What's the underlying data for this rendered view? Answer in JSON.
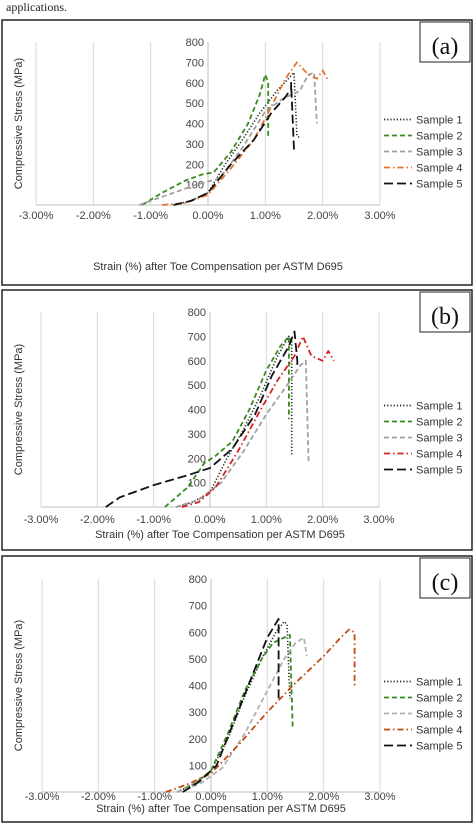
{
  "caption": "applications.",
  "chart_data": [
    {
      "type": "line",
      "panel_label": "(a)",
      "xlabel": "Strain (%) after Toe Compensation per ASTM D695",
      "ylabel": "Compressive Stress (MPa)",
      "xlim": [
        -3,
        3
      ],
      "ylim": [
        0,
        800
      ],
      "x_ticks": [
        "-3.00%",
        "-2.00%",
        "-1.00%",
        "0.00%",
        "1.00%",
        "2.00%",
        "3.00%"
      ],
      "y_ticks": [
        "0",
        "100",
        "200",
        "300",
        "400",
        "500",
        "600",
        "700",
        "800"
      ],
      "grid": "vertical",
      "legend_position": "right",
      "series": [
        {
          "name": "Sample 1",
          "color": "#222222",
          "dash": "dotted",
          "x": [
            -0.6,
            -0.3,
            0.0,
            0.3,
            0.6,
            0.9,
            1.2,
            1.4,
            1.5,
            1.55,
            1.6
          ],
          "y": [
            0,
            20,
            60,
            200,
            320,
            450,
            560,
            620,
            650,
            340,
            330
          ]
        },
        {
          "name": "Sample 2",
          "color": "#3a8a1e",
          "dash": "dash",
          "x": [
            -1.15,
            -0.8,
            -0.4,
            -0.1,
            0.1,
            0.4,
            0.7,
            0.9,
            1.0,
            1.05,
            1.05
          ],
          "y": [
            0,
            60,
            120,
            150,
            160,
            260,
            400,
            540,
            640,
            600,
            340
          ]
        },
        {
          "name": "Sample 3",
          "color": "#a0a0a0",
          "dash": "dash",
          "x": [
            -1.2,
            -0.7,
            -0.2,
            0.2,
            0.6,
            1.0,
            1.3,
            1.6,
            1.75,
            1.85,
            1.9
          ],
          "y": [
            0,
            50,
            100,
            130,
            280,
            460,
            520,
            560,
            640,
            650,
            400
          ]
        },
        {
          "name": "Sample 4",
          "color": "#e8702a",
          "dash": "dashdot",
          "x": [
            -0.8,
            -0.4,
            0.0,
            0.4,
            0.8,
            1.1,
            1.35,
            1.55,
            1.75,
            1.9,
            2.0,
            2.1
          ],
          "y": [
            0,
            10,
            50,
            180,
            320,
            480,
            620,
            700,
            640,
            620,
            660,
            610
          ]
        },
        {
          "name": "Sample 5",
          "color": "#111111",
          "dash": "longdash",
          "x": [
            -0.6,
            -0.3,
            0.0,
            0.4,
            0.8,
            1.1,
            1.35,
            1.45,
            1.45,
            1.5
          ],
          "y": [
            0,
            20,
            60,
            200,
            320,
            450,
            530,
            570,
            600,
            270
          ]
        }
      ]
    },
    {
      "type": "line",
      "panel_label": "(b)",
      "xlabel": "Strain (%) after Toe Compensation per ASTM D695",
      "ylabel": "Compressive Stress (MPa)",
      "xlim": [
        -3,
        3
      ],
      "ylim": [
        0,
        800
      ],
      "x_ticks": [
        "-3.00%",
        "-2.00%",
        "-1.00%",
        "0.00%",
        "1.00%",
        "2.00%",
        "3.00%"
      ],
      "y_ticks": [
        "0",
        "100",
        "200",
        "300",
        "400",
        "500",
        "600",
        "700",
        "800"
      ],
      "grid": "vertical",
      "legend_position": "right",
      "series": [
        {
          "name": "Sample 1",
          "color": "#222222",
          "dash": "dotted",
          "x": [
            -0.6,
            -0.3,
            0.0,
            0.3,
            0.6,
            0.9,
            1.2,
            1.4,
            1.45,
            1.45
          ],
          "y": [
            0,
            20,
            60,
            200,
            320,
            460,
            620,
            700,
            680,
            210
          ]
        },
        {
          "name": "Sample 2",
          "color": "#3a8a1e",
          "dash": "dash",
          "x": [
            -0.8,
            -0.4,
            -0.1,
            0.1,
            0.4,
            0.7,
            1.0,
            1.25,
            1.4,
            1.4
          ],
          "y": [
            0,
            80,
            180,
            210,
            270,
            400,
            560,
            660,
            700,
            360
          ]
        },
        {
          "name": "Sample 3",
          "color": "#a0a0a0",
          "dash": "dash",
          "x": [
            -0.6,
            -0.2,
            0.2,
            0.6,
            1.0,
            1.4,
            1.6,
            1.7,
            1.75
          ],
          "y": [
            0,
            30,
            100,
            230,
            380,
            510,
            580,
            600,
            180
          ]
        },
        {
          "name": "Sample 4",
          "color": "#d62020",
          "dash": "dashdot",
          "x": [
            -0.5,
            -0.2,
            0.1,
            0.5,
            0.9,
            1.2,
            1.5,
            1.65,
            1.8,
            2.0,
            2.1,
            2.2
          ],
          "y": [
            0,
            20,
            80,
            230,
            400,
            520,
            620,
            700,
            620,
            600,
            640,
            600
          ]
        },
        {
          "name": "Sample 5",
          "color": "#111111",
          "dash": "longdash",
          "x": [
            -1.85,
            -1.6,
            -1.0,
            -0.4,
            0.0,
            0.4,
            0.8,
            1.1,
            1.4,
            1.5,
            1.55,
            1.55
          ],
          "y": [
            0,
            40,
            90,
            130,
            160,
            240,
            380,
            540,
            660,
            720,
            600,
            580
          ]
        }
      ]
    },
    {
      "type": "line",
      "panel_label": "(c)",
      "xlabel": "Strain (%) after Toe Compensation per ASTM D695",
      "ylabel": "Compressive Stress (MPa)",
      "xlim": [
        -3,
        3
      ],
      "ylim": [
        0,
        800
      ],
      "x_ticks": [
        "-3.00%",
        "-2.00%",
        "-1.00%",
        "0.00%",
        "1.00%",
        "2.00%",
        "3.00%"
      ],
      "y_ticks": [
        "0",
        "100",
        "200",
        "300",
        "400",
        "500",
        "600",
        "700",
        "800"
      ],
      "grid": "vertical",
      "legend_position": "right",
      "series": [
        {
          "name": "Sample 1",
          "color": "#222222",
          "dash": "dotted",
          "x": [
            -0.6,
            -0.3,
            0.0,
            0.3,
            0.6,
            0.9,
            1.15,
            1.3,
            1.35,
            1.4
          ],
          "y": [
            0,
            30,
            80,
            200,
            360,
            500,
            600,
            640,
            630,
            350
          ]
        },
        {
          "name": "Sample 2",
          "color": "#3a8a1e",
          "dash": "dash",
          "x": [
            -0.6,
            -0.3,
            0.0,
            0.3,
            0.6,
            0.9,
            1.1,
            1.3,
            1.4,
            1.45
          ],
          "y": [
            0,
            30,
            80,
            220,
            380,
            500,
            560,
            580,
            590,
            240
          ]
        },
        {
          "name": "Sample 3",
          "color": "#b0b0b0",
          "dash": "dash",
          "x": [
            -0.6,
            -0.2,
            0.2,
            0.6,
            1.0,
            1.3,
            1.5,
            1.65,
            1.7
          ],
          "y": [
            0,
            30,
            90,
            220,
            380,
            500,
            560,
            580,
            510
          ]
        },
        {
          "name": "Sample 4",
          "color": "#c04a10",
          "dash": "dashdot",
          "x": [
            -0.8,
            -0.4,
            0.0,
            0.5,
            1.0,
            1.5,
            2.0,
            2.3,
            2.45,
            2.55,
            2.55
          ],
          "y": [
            0,
            30,
            70,
            180,
            300,
            410,
            510,
            580,
            610,
            600,
            400
          ]
        },
        {
          "name": "Sample 5",
          "color": "#111111",
          "dash": "longdash",
          "x": [
            -0.5,
            -0.2,
            0.1,
            0.4,
            0.7,
            1.0,
            1.2,
            1.2
          ],
          "y": [
            0,
            40,
            100,
            260,
            420,
            580,
            650,
            350
          ]
        }
      ]
    }
  ]
}
